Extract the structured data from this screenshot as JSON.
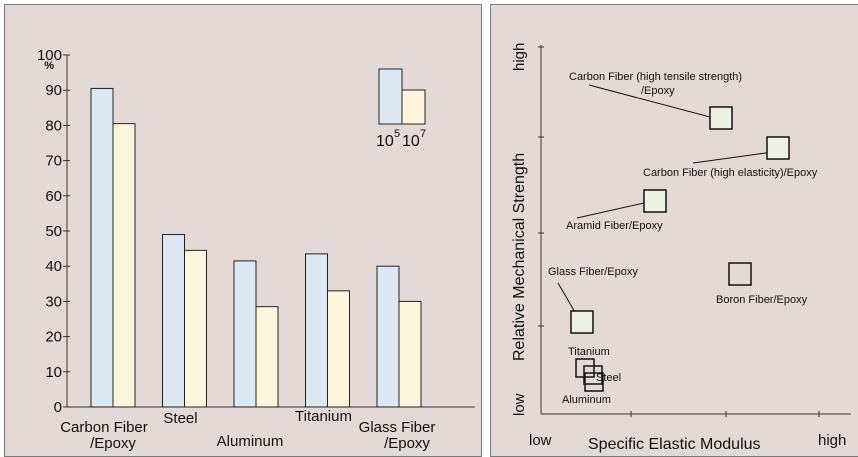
{
  "chart_data": [
    {
      "type": "bar",
      "categories": [
        "Carbon Fiber\n/Epoxy",
        "Steel",
        "Aluminum",
        "Titanium",
        "Glass Fiber\n/Epoxy"
      ],
      "series": [
        {
          "name": "10⁵",
          "values": [
            90.5,
            49,
            41.5,
            43.5,
            40
          ],
          "color": "#dde8f5"
        },
        {
          "name": "10⁷",
          "values": [
            80.5,
            44.5,
            28.5,
            33,
            30
          ],
          "color": "#fdf6dc"
        }
      ],
      "ylim": [
        0,
        100
      ],
      "yticks": [
        0,
        10,
        20,
        30,
        40,
        50,
        60,
        70,
        80,
        90,
        100
      ],
      "yunit": "%",
      "legend_position": "top-right",
      "legend_labels": [
        "10",
        "5",
        "10",
        "7"
      ],
      "xlabel": "",
      "ylabel": "",
      "title": ""
    },
    {
      "type": "scatter",
      "xlabel": "Specific Elastic Modulus",
      "ylabel": "Relative Mechanical Strength",
      "x_low": "low",
      "x_high": "high",
      "y_low": "low",
      "y_high": "high",
      "points": [
        {
          "label": "Carbon Fiber (high tensile strength)\n/Epoxy",
          "x": 0.57,
          "y": 0.82
        },
        {
          "label": "Carbon Fiber (high elasticity)/Epoxy",
          "x": 0.86,
          "y": 0.71
        },
        {
          "label": "Aramid Fiber/Epoxy",
          "x": 0.31,
          "y": 0.58
        },
        {
          "label": "Glass Fiber/Epoxy",
          "x": 0.13,
          "y": 0.23
        },
        {
          "label": "Boron Fiber/Epoxy",
          "x": 0.63,
          "y": 0.37
        },
        {
          "label": "Titanium",
          "x": 0.14,
          "y": 0.11
        },
        {
          "label": "Steel",
          "x": 0.16,
          "y": 0.09
        },
        {
          "label": "Aluminum",
          "x": 0.15,
          "y": 0.07
        }
      ]
    }
  ]
}
